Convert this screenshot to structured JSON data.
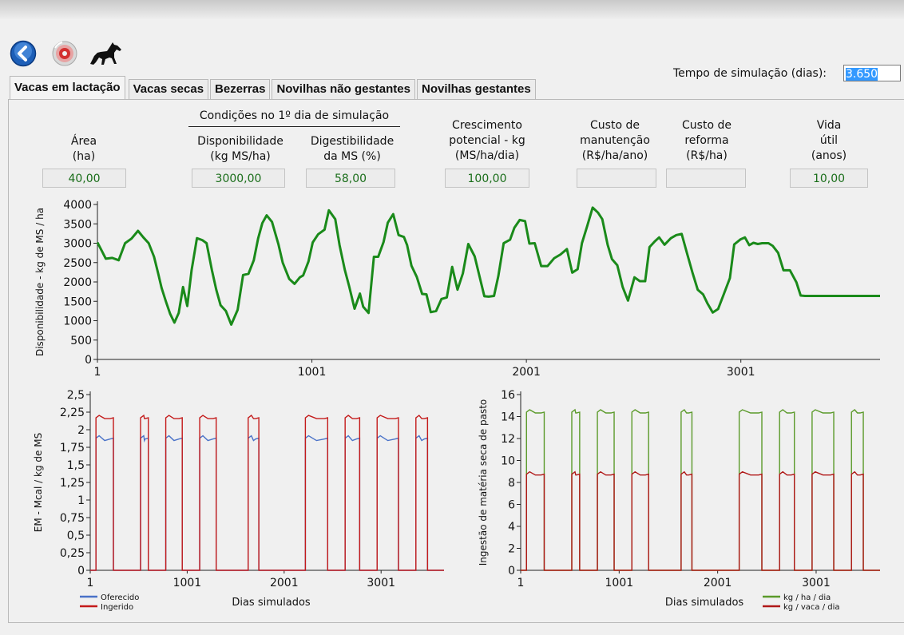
{
  "toolbar": {
    "icons": [
      "back-arrow-icon",
      "disc-icon",
      "horse-icon"
    ],
    "sim_label": "Tempo de simulação (dias):",
    "sim_value": "3.650"
  },
  "tabs": [
    {
      "label": "Vacas em lactação",
      "active": true
    },
    {
      "label": "Vacas secas"
    },
    {
      "label": "Bezerras"
    },
    {
      "label": "Novilhas não gestantes"
    },
    {
      "label": "Novilhas gestantes"
    }
  ],
  "conditions_title": "Condições no 1º dia de simulação",
  "fields": {
    "area": {
      "label1": "Área",
      "label2": "(ha)",
      "value": "40,00"
    },
    "disponibilidade": {
      "label1": "Disponibilidade",
      "label2": "(kg MS/ha)",
      "value": "3000,00"
    },
    "digestibilidade": {
      "label1": "Digestibilidade",
      "label2": "da MS (%)",
      "value": "58,00"
    },
    "crescimento": {
      "label1": "Crescimento",
      "label2": "potencial - kg",
      "label3": "(MS/ha/dia)",
      "value": "100,00"
    },
    "custo_manutencao": {
      "label1": "Custo de",
      "label2": "manutenção",
      "label3": "(R$/ha/ano)",
      "value": ""
    },
    "custo_reforma": {
      "label1": "Custo de",
      "label2": "reforma",
      "label3": "(R$/ha)",
      "value": ""
    },
    "vida_util": {
      "label1": "Vida",
      "label2": "útil",
      "label3": "(anos)",
      "value": "10,00"
    }
  },
  "chart_data": [
    {
      "type": "line",
      "ylabel": "Disponibilidade - kg de MS / ha",
      "xlabel": "",
      "xlim": [
        1,
        3650
      ],
      "ylim": [
        0,
        4000
      ],
      "xticks": [
        1,
        1001,
        2001,
        3001
      ],
      "yticks": [
        0,
        500,
        1000,
        1500,
        2000,
        2500,
        3000,
        3500,
        4000
      ],
      "color": "#1a8a1a",
      "series": [
        {
          "x": [
            1,
            40,
            70,
            100,
            130,
            160,
            190,
            215,
            240,
            265,
            285,
            300,
            320,
            340,
            360,
            380,
            400,
            420,
            440,
            465,
            490,
            510,
            535,
            555,
            575,
            600,
            625,
            655,
            680,
            705,
            730,
            750,
            770,
            790,
            815,
            845,
            865,
            895,
            920,
            945,
            960,
            985,
            1005,
            1030,
            1060,
            1080,
            1110,
            1130,
            1155,
            1175,
            1200,
            1225,
            1240,
            1265,
            1290,
            1310,
            1335,
            1355,
            1380,
            1405,
            1430,
            1445,
            1465,
            1490,
            1515,
            1535,
            1555,
            1580,
            1605,
            1630,
            1655,
            1680,
            1705,
            1730,
            1760,
            1780,
            1805,
            1825,
            1850,
            1870,
            1895,
            1925,
            1945,
            1970,
            1995,
            2015,
            2040,
            2070,
            2100,
            2130,
            2160,
            2190,
            2215,
            2240,
            2260,
            2285,
            2310,
            2335,
            2355,
            2380,
            2400,
            2425,
            2450,
            2475,
            2505,
            2530,
            2555,
            2575,
            2600,
            2620,
            2645,
            2675,
            2700,
            2725,
            2750,
            2775,
            2800,
            2825,
            2845,
            2870,
            2895,
            2920,
            2950,
            2970,
            3000,
            3020,
            3040,
            3060,
            3080,
            3100,
            3130,
            3150,
            3175,
            3200,
            3230,
            3260,
            3280,
            3300,
            3320,
            3340,
            3360,
            3380,
            3400,
            3420,
            3440,
            3460,
            3480,
            3500,
            3520,
            3540,
            3560,
            3580,
            3600,
            3625,
            3650
          ],
          "y": [
            3020,
            2600,
            2620,
            2560,
            3000,
            3120,
            3320,
            3150,
            3000,
            2650,
            2200,
            1850,
            1500,
            1180,
            950,
            1200,
            1870,
            1380,
            2300,
            3130,
            3080,
            3000,
            2300,
            1800,
            1400,
            1250,
            900,
            1280,
            2180,
            2210,
            2560,
            3120,
            3520,
            3720,
            3550,
            2970,
            2500,
            2080,
            1950,
            2120,
            2170,
            2530,
            3020,
            3230,
            3350,
            3850,
            3620,
            2950,
            2300,
            1880,
            1310,
            1700,
            1360,
            1200,
            2650,
            2650,
            3030,
            3530,
            3750,
            3210,
            3160,
            2950,
            2420,
            2130,
            1690,
            1680,
            1220,
            1250,
            1560,
            1600,
            2390,
            1800,
            2220,
            2980,
            2660,
            2200,
            1630,
            1620,
            1640,
            2150,
            3000,
            3090,
            3400,
            3600,
            3570,
            2990,
            3000,
            2410,
            2410,
            2610,
            2710,
            2850,
            2240,
            2330,
            3000,
            3450,
            3920,
            3790,
            3620,
            2960,
            2590,
            2430,
            1870,
            1520,
            2120,
            2020,
            2020,
            2900,
            3050,
            3150,
            2960,
            3130,
            3210,
            3240,
            2740,
            2250,
            1800,
            1680,
            1450,
            1210,
            1300,
            1660,
            2100,
            2970,
            3100,
            3150,
            2950,
            3010,
            2980,
            3000,
            3000,
            2930,
            2750,
            2300,
            2300,
            1990,
            1650,
            1640,
            1640,
            1640,
            1640,
            1640,
            1640,
            1640,
            1640,
            1640,
            1640,
            1640,
            1640,
            1640,
            1640,
            1640,
            1640,
            1640,
            1640
          ]
        }
      ]
    },
    {
      "type": "line",
      "ylabel": "EM - Mcal / kg de MS",
      "xlabel": "Dias simulados",
      "xlim": [
        1,
        3650
      ],
      "ylim": [
        0,
        2.5
      ],
      "xticks": [
        1,
        1001,
        2001,
        3001
      ],
      "yticks": [
        0,
        0.25,
        0.5,
        0.75,
        1,
        1.25,
        1.5,
        1.75,
        2,
        2.25,
        2.5
      ],
      "ytick_labels": [
        "0",
        "0,25",
        "0,5",
        "0,75",
        "1",
        "1,25",
        "1,5",
        "1,75",
        "2",
        "2,25",
        "2,5"
      ],
      "legend": "bottom-left",
      "series": [
        {
          "name": "Oferecido",
          "color": "#4a72c8",
          "periods": [
            [
              60,
              240
            ],
            [
              520,
              600
            ],
            [
              780,
              950
            ],
            [
              1130,
              1300
            ],
            [
              1630,
              1740
            ],
            [
              2220,
              2450
            ],
            [
              2630,
              2780
            ],
            [
              2960,
              3180
            ],
            [
              3360,
              3480
            ]
          ],
          "value": 1.88
        },
        {
          "name": "Ingerido",
          "color": "#c41a1a",
          "periods": [
            [
              60,
              240
            ],
            [
              520,
              600
            ],
            [
              780,
              950
            ],
            [
              1130,
              1300
            ],
            [
              1630,
              1740
            ],
            [
              2220,
              2450
            ],
            [
              2630,
              2780
            ],
            [
              2960,
              3180
            ],
            [
              3360,
              3480
            ]
          ],
          "value": 2.17
        }
      ]
    },
    {
      "type": "line",
      "ylabel": "Ingestão de matéria seca de pasto",
      "xlabel": "Dias simulados",
      "xlim": [
        1,
        3650
      ],
      "ylim": [
        0,
        16
      ],
      "xticks": [
        1,
        1001,
        2001,
        3001
      ],
      "yticks": [
        0,
        2,
        4,
        6,
        8,
        10,
        12,
        14,
        16
      ],
      "legend": "bottom-right",
      "series": [
        {
          "name": "kg / ha / dia",
          "color": "#5b9a2a",
          "periods": [
            [
              60,
              240
            ],
            [
              520,
              600
            ],
            [
              780,
              950
            ],
            [
              1130,
              1300
            ],
            [
              1630,
              1740
            ],
            [
              2220,
              2450
            ],
            [
              2630,
              2780
            ],
            [
              2960,
              3180
            ],
            [
              3360,
              3480
            ]
          ],
          "value": 14.4
        },
        {
          "name": "kg / vaca / dia",
          "color": "#b01818",
          "periods": [
            [
              60,
              240
            ],
            [
              520,
              600
            ],
            [
              780,
              950
            ],
            [
              1130,
              1300
            ],
            [
              1630,
              1740
            ],
            [
              2220,
              2450
            ],
            [
              2630,
              2780
            ],
            [
              2960,
              3180
            ],
            [
              3360,
              3480
            ]
          ],
          "value": 8.75
        }
      ]
    }
  ]
}
